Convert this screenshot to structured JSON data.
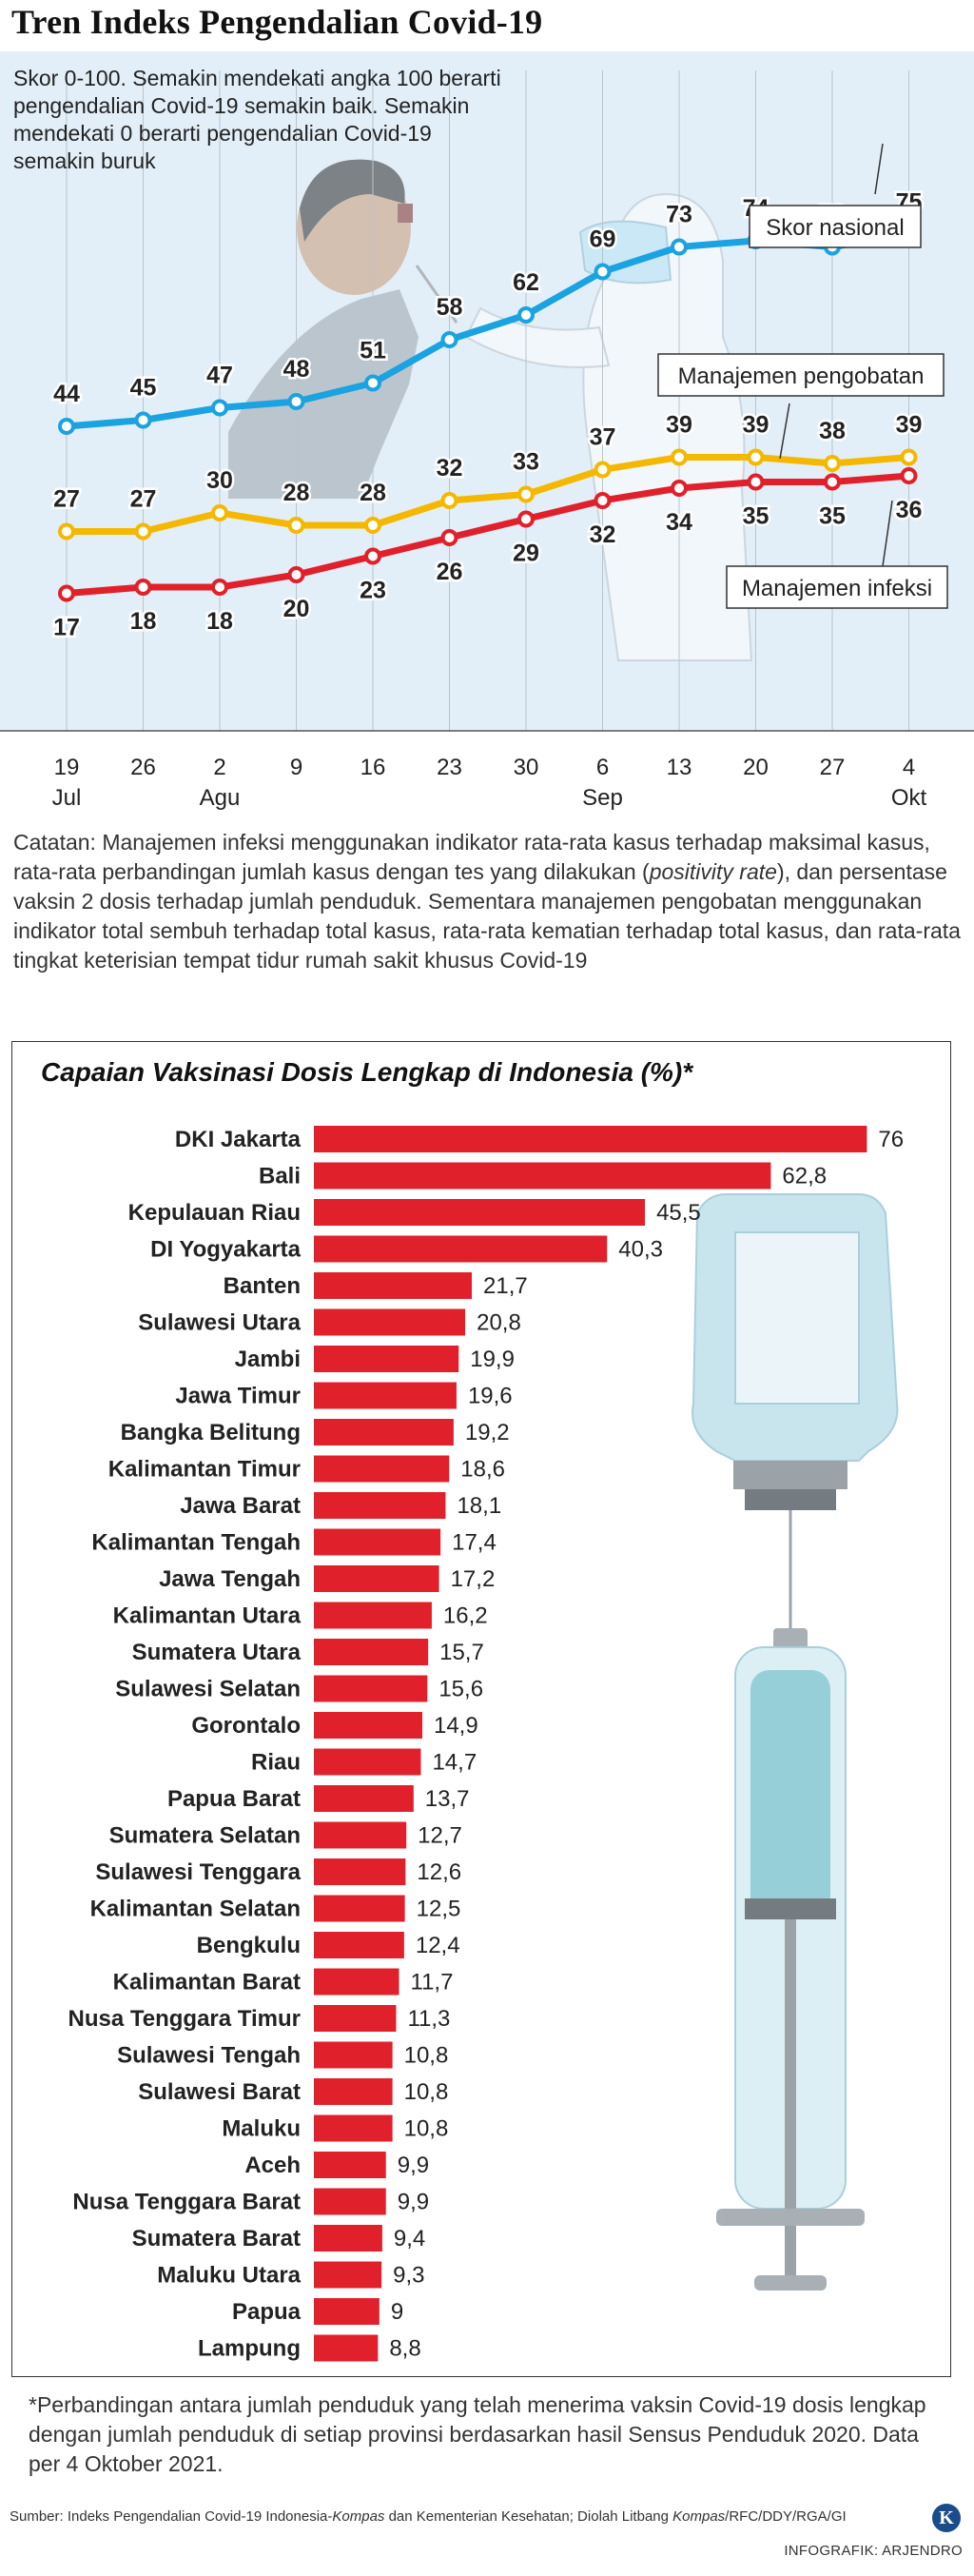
{
  "title": "Tren Indeks Pengendalian Covid-19",
  "intro": "Skor 0-100. Semakin mendekati angka 100 berarti pengendalian Covid-19 semakin baik. Semakin mendekati 0 berarti pengendalian Covid-19 semakin buruk",
  "note": {
    "part1": "Catatan: Manajemen infeksi menggunakan indikator rata-rata kasus terhadap maksimal kasus, rata-rata perbandingan jumlah kasus dengan tes yang dilakukan (",
    "italic": "positivity rate",
    "part2": "), dan persentase vaksin 2 dosis terhadap jumlah penduduk. Sementara manajemen pengobatan menggunakan indikator total sembuh terhadap total kasus, rata-rata kematian terhadap total kasus, dan rata-rata tingkat keterisian tempat tidur rumah sakit khusus Covid-19"
  },
  "chart_data": [
    {
      "type": "line",
      "title": "Tren Indeks Pengendalian Covid-19",
      "x": [
        "19 Jul",
        "26 Jul",
        "2 Agu",
        "9 Agu",
        "16 Agu",
        "23 Agu",
        "30 Agu",
        "6 Sep",
        "13 Sep",
        "20 Sep",
        "27 Sep",
        "4 Okt"
      ],
      "x_ticks": [
        {
          "day": "19",
          "month": "Jul"
        },
        {
          "day": "26",
          "month": ""
        },
        {
          "day": "2",
          "month": "Agu"
        },
        {
          "day": "9",
          "month": ""
        },
        {
          "day": "16",
          "month": ""
        },
        {
          "day": "23",
          "month": ""
        },
        {
          "day": "30",
          "month": ""
        },
        {
          "day": "6",
          "month": "Sep"
        },
        {
          "day": "13",
          "month": ""
        },
        {
          "day": "20",
          "month": ""
        },
        {
          "day": "27",
          "month": ""
        },
        {
          "day": "4",
          "month": "Okt"
        }
      ],
      "ylim": [
        0,
        100
      ],
      "grid": "vertical",
      "series": [
        {
          "name": "Skor nasional",
          "color": "#1aa3e0",
          "values": [
            44,
            45,
            47,
            48,
            51,
            58,
            62,
            69,
            73,
            74,
            73,
            75
          ]
        },
        {
          "name": "Manajemen pengobatan",
          "color": "#f5b800",
          "values": [
            27,
            27,
            30,
            28,
            28,
            32,
            33,
            37,
            39,
            39,
            38,
            39
          ]
        },
        {
          "name": "Manajemen infeksi",
          "color": "#e0202a",
          "values": [
            17,
            18,
            18,
            20,
            23,
            26,
            29,
            32,
            34,
            35,
            35,
            36
          ]
        }
      ]
    },
    {
      "type": "bar",
      "orientation": "horizontal",
      "title": "Capaian Vaksinasi Dosis Lengkap di Indonesia (%)*",
      "color": "#e0202a",
      "xlim": [
        0,
        100
      ],
      "categories": [
        "DKI Jakarta",
        "Bali",
        "Kepulauan Riau",
        "DI Yogyakarta",
        "Banten",
        "Sulawesi Utara",
        "Jambi",
        "Jawa Timur",
        "Bangka Belitung",
        "Kalimantan Timur",
        "Jawa Barat",
        "Kalimantan Tengah",
        "Jawa Tengah",
        "Kalimantan Utara",
        "Sumatera Utara",
        "Sulawesi Selatan",
        "Gorontalo",
        "Riau",
        "Papua Barat",
        "Sumatera Selatan",
        "Sulawesi Tenggara",
        "Kalimantan Selatan",
        "Bengkulu",
        "Kalimantan Barat",
        "Nusa Tenggara Timur",
        "Sulawesi Tengah",
        "Sulawesi Barat",
        "Maluku",
        "Aceh",
        "Nusa Tenggara Barat",
        "Sumatera Barat",
        "Maluku Utara",
        "Papua",
        "Lampung"
      ],
      "values": [
        76,
        62.8,
        45.5,
        40.3,
        21.7,
        20.8,
        19.9,
        19.6,
        19.2,
        18.6,
        18.1,
        17.4,
        17.2,
        16.2,
        15.7,
        15.6,
        14.9,
        14.7,
        13.7,
        12.7,
        12.6,
        12.5,
        12.4,
        11.7,
        11.3,
        10.8,
        10.8,
        10.8,
        9.9,
        9.9,
        9.4,
        9.3,
        9,
        8.8
      ],
      "labels": [
        "76",
        "62,8",
        "45,5",
        "40,3",
        "21,7",
        "20,8",
        "19,9",
        "19,6",
        "19,2",
        "18,6",
        "18,1",
        "17,4",
        "17,2",
        "16,2",
        "15,7",
        "15,6",
        "14,9",
        "14,7",
        "13,7",
        "12,7",
        "12,6",
        "12,5",
        "12,4",
        "11,7",
        "11,3",
        "10,8",
        "10,8",
        "10,8",
        "9,9",
        "9,9",
        "9,4",
        "9,3",
        "9",
        "8,8"
      ]
    }
  ],
  "footnote": "*Perbandingan antara jumlah penduduk yang telah menerima vaksin Covid-19 dosis lengkap dengan jumlah penduduk di setiap provinsi berdasarkan hasil Sensus Penduduk 2020. Data per 4 Oktober 2021.",
  "source": {
    "prefix": "Sumber: Indeks Pengendalian Covid-19 Indonesia-",
    "italic1": "Kompas",
    "middle": " dan Kementerian Kesehatan; Diolah Litbang ",
    "italic2": "Kompas",
    "suffix": "/RFC/DDY/RGA/GI"
  },
  "logo_letter": "K",
  "credit": "INFOGRAFIK: ARJENDRO",
  "colors": {
    "panel_bg": "#e3eff8",
    "bar": "#e0202a"
  }
}
